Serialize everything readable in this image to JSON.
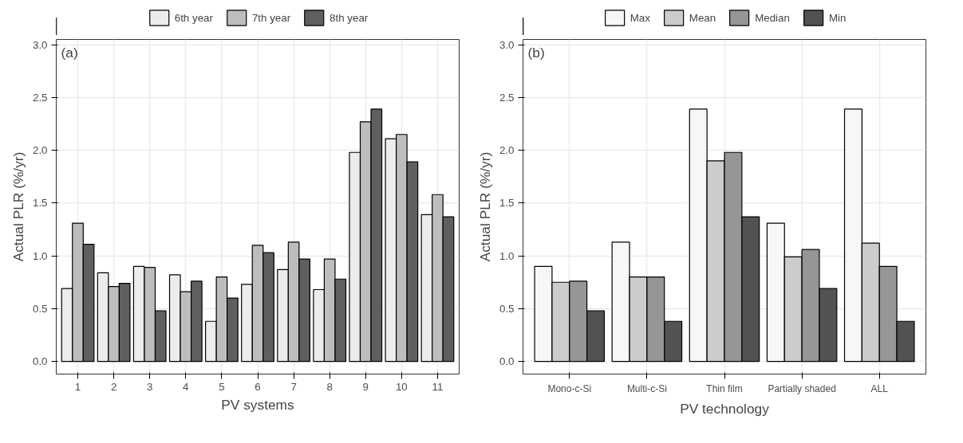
{
  "chart_data": [
    {
      "type": "bar",
      "xlabel": "PV systems",
      "ylabel": "Actual PLR (%/yr)",
      "annotations": [
        "(a)"
      ],
      "categories": [
        "1",
        "2",
        "3",
        "4",
        "5",
        "6",
        "7",
        "8",
        "9",
        "10",
        "11"
      ],
      "series": [
        {
          "name": "6th year",
          "color": "#ececec",
          "values": [
            0.69,
            0.84,
            0.9,
            0.82,
            0.38,
            0.73,
            0.87,
            0.68,
            1.98,
            2.11,
            1.39
          ]
        },
        {
          "name": "7th year",
          "color": "#bdbdbd",
          "values": [
            1.31,
            0.71,
            0.89,
            0.66,
            0.8,
            1.1,
            1.13,
            0.97,
            2.27,
            2.15,
            1.58
          ]
        },
        {
          "name": "8th year",
          "color": "#5f5f5f",
          "values": [
            1.11,
            0.74,
            0.48,
            0.76,
            0.6,
            1.03,
            0.97,
            0.78,
            2.39,
            1.89,
            1.37
          ]
        }
      ],
      "ylim": [
        -0.12,
        3.05
      ],
      "yticks": [
        {
          "value": 0,
          "label": "0.0"
        },
        0.5,
        {
          "value": 1,
          "label": "1.0"
        },
        1.5,
        {
          "value": 2,
          "label": "2.0"
        },
        2.5,
        {
          "value": 3,
          "label": "3.0"
        }
      ],
      "grid": true,
      "legend": "top"
    },
    {
      "type": "bar",
      "xlabel": "PV technology",
      "ylabel": "Actual PLR (%/yr)",
      "annotations": [
        "(b)"
      ],
      "categories": [
        "Mono-c-Si",
        "Multi-c-Si",
        "Thin film",
        "Partially shaded",
        "ALL"
      ],
      "series": [
        {
          "name": "Max",
          "color": "#f7f7f7",
          "values": [
            0.9,
            1.13,
            2.39,
            1.31,
            2.39
          ]
        },
        {
          "name": "Mean",
          "color": "#cccccc",
          "values": [
            0.75,
            0.8,
            1.9,
            0.99,
            1.12
          ]
        },
        {
          "name": "Median",
          "color": "#969696",
          "values": [
            0.76,
            0.8,
            1.98,
            1.06,
            0.9
          ]
        },
        {
          "name": "Min",
          "color": "#525252",
          "values": [
            0.48,
            0.38,
            1.37,
            0.69,
            0.38
          ]
        }
      ],
      "ylim": [
        -0.12,
        3.05
      ],
      "yticks": [
        {
          "value": 0,
          "label": "0.0"
        },
        0.5,
        {
          "value": 1,
          "label": "1.0"
        },
        1.5,
        {
          "value": 2,
          "label": "2.0"
        },
        2.5,
        {
          "value": 3,
          "label": "3.0"
        }
      ],
      "grid": true,
      "legend": "top"
    }
  ]
}
